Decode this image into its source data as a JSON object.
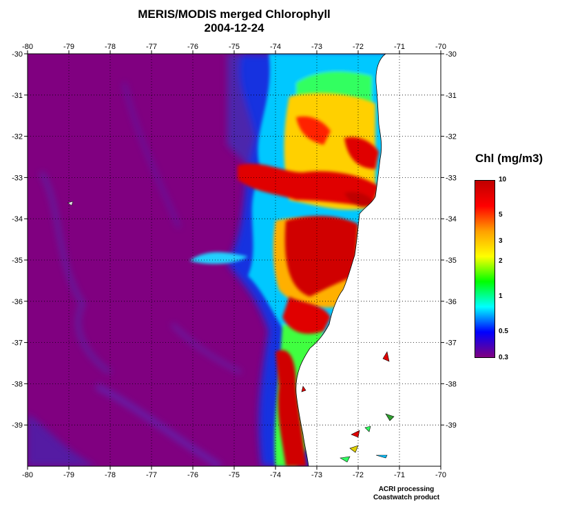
{
  "title": "MERIS/MODIS merged Chlorophyll",
  "date": "2004-12-24",
  "map": {
    "lon_range": [
      -80,
      -70
    ],
    "lat_range": [
      -40,
      -30
    ],
    "lon_ticks": [
      "-80",
      "-79",
      "-78",
      "-77",
      "-76",
      "-75",
      "-74",
      "-73",
      "-72",
      "-71",
      "-70"
    ],
    "lat_ticks": [
      "-30",
      "-31",
      "-32",
      "-33",
      "-34",
      "-35",
      "-36",
      "-37",
      "-38",
      "-39"
    ],
    "grid": "dotted",
    "land_color": "#ffffff",
    "ocean_background_color": "#800080"
  },
  "legend": {
    "title": "Chl (mg/m3)",
    "scale": "log",
    "range": [
      0.3,
      10
    ],
    "labels": [
      "10",
      "5",
      "3",
      "2",
      "1",
      "0.5",
      "0.3"
    ],
    "colors": [
      "#c00000",
      "#ff0000",
      "#ffa000",
      "#ffff00",
      "#00ff00",
      "#00ffff",
      "#0000ff",
      "#800080"
    ]
  },
  "credits": {
    "line1": "ACRI processing",
    "line2": "Coastwatch product"
  }
}
